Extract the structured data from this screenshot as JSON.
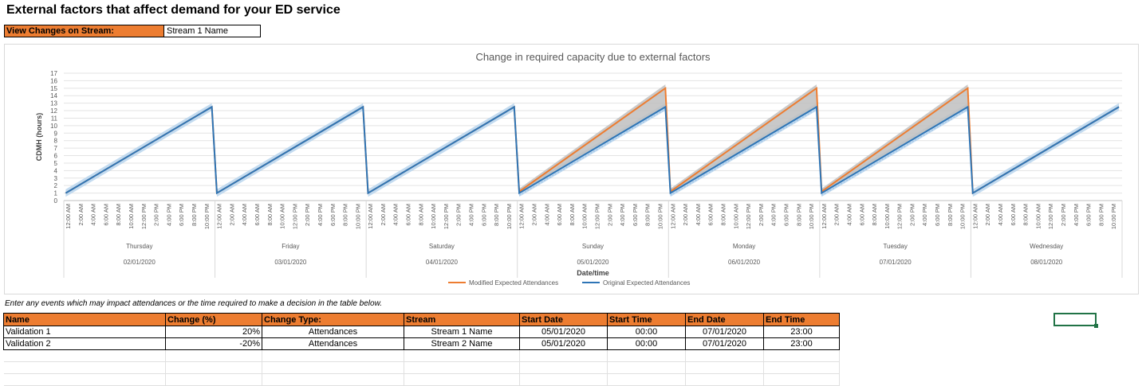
{
  "page": {
    "title": "External factors that affect demand for your ED service"
  },
  "stream_selector": {
    "label": "View Changes on Stream:",
    "value": "Stream 1 Name"
  },
  "colors": {
    "orange": "#ed7d31",
    "blue": "#2e75b6",
    "light_blue": "#bdd7ee",
    "gray_fill": "#bfbfbf",
    "selection": "#217346"
  },
  "chart_data": {
    "type": "line",
    "title": "Change in required capacity due to external factors",
    "xlabel": "Date/time",
    "ylabel": "CDMH (hours)",
    "ylim": [
      0,
      17
    ],
    "y_ticks": [
      0,
      1,
      2,
      3,
      4,
      5,
      6,
      7,
      8,
      9,
      10,
      11,
      12,
      13,
      14,
      15,
      16,
      17
    ],
    "hour_tick_labels": [
      "12:00 AM",
      "2:00 AM",
      "4:00 AM",
      "6:00 AM",
      "8:00 AM",
      "10:00 AM",
      "12:00 PM",
      "2:00 PM",
      "4:00 PM",
      "6:00 PM",
      "8:00 PM",
      "10:00 PM"
    ],
    "days": [
      {
        "weekday": "Thursday",
        "date": "02/01/2020"
      },
      {
        "weekday": "Friday",
        "date": "03/01/2020"
      },
      {
        "weekday": "Saturday",
        "date": "04/01/2020"
      },
      {
        "weekday": "Sunday",
        "date": "05/01/2020"
      },
      {
        "weekday": "Monday",
        "date": "06/01/2020"
      },
      {
        "weekday": "Tuesday",
        "date": "07/01/2020"
      },
      {
        "weekday": "Wednesday",
        "date": "08/01/2020"
      }
    ],
    "grid": true,
    "legend_position": "bottom",
    "series": [
      {
        "name": "Modified Expected Attendances",
        "color": "#ed7d31",
        "day_start": [
          1,
          1,
          1,
          1.2,
          1.2,
          1.2,
          1
        ],
        "day_end": [
          12.5,
          12.5,
          12.5,
          15,
          15,
          15,
          12.5
        ]
      },
      {
        "name": "Original Expected Attendances",
        "color": "#2e75b6",
        "day_start": [
          1,
          1,
          1,
          1,
          1,
          1,
          1
        ],
        "day_end": [
          12.5,
          12.5,
          12.5,
          12.5,
          12.5,
          12.5,
          12.5
        ]
      }
    ]
  },
  "events": {
    "instruction": "Enter any events which may impact attendances or the time required to make a decision in the table below.",
    "headers": [
      "Name",
      "Change (%)",
      "Change Type:",
      "Stream",
      "Start Date",
      "Start Time",
      "End Date",
      "End Time"
    ],
    "rows": [
      [
        "Validation 1",
        "20%",
        "Attendances",
        "Stream 1 Name",
        "05/01/2020",
        "00:00",
        "07/01/2020",
        "23:00"
      ],
      [
        "Validation 2",
        "-20%",
        "Attendances",
        "Stream 2 Name",
        "05/01/2020",
        "00:00",
        "07/01/2020",
        "23:00"
      ]
    ]
  }
}
